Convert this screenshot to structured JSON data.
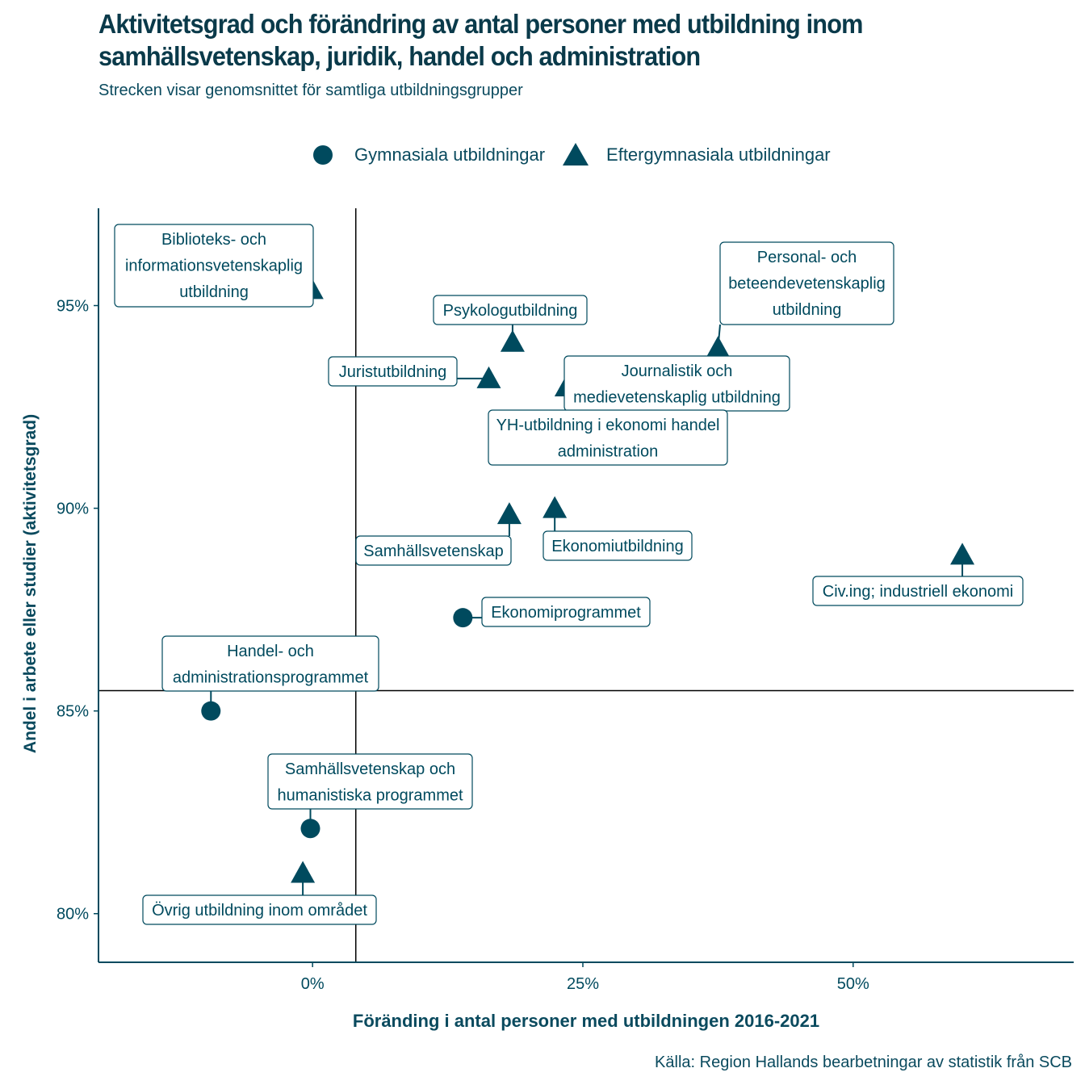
{
  "title_line1": "Aktivitetsgrad och förändring av antal personer med utbildning inom",
  "title_line2": "samhällsvetenskap, juridik, handel och administration",
  "subtitle": "Strecken visar genomsnittet för samtliga utbildningsgrupper",
  "caption": "Källa: Region Hallands bearbetningar av statistik från SCB",
  "colors": {
    "marker": "#004a5e",
    "text": "#0a4a5e",
    "refline": "#000000"
  },
  "legend": [
    {
      "label": "Gymnasiala utbildningar",
      "shape": "circle"
    },
    {
      "label": "Eftergymnasiala utbildningar",
      "shape": "triangle"
    }
  ],
  "chart_data": {
    "type": "scatter",
    "title": "Aktivitetsgrad och förändring av antal personer med utbildning inom samhällsvetenskap, juridik, handel och administration",
    "subtitle": "Strecken visar genomsnittet för samtliga utbildningsgrupper",
    "xlabel": "Föränding i antal personer med utbildningen 2016-2021",
    "ylabel": "Andel i arbete eller studier (aktivitetsgrad)",
    "xlim": [
      -19.8,
      70.4
    ],
    "ylim": [
      78.8,
      97.4
    ],
    "x_ticks": [
      0,
      25,
      50
    ],
    "x_tick_labels": [
      "0%",
      "25%",
      "50%"
    ],
    "y_ticks": [
      80,
      85,
      90,
      95
    ],
    "y_tick_labels": [
      "80%",
      "85%",
      "90%",
      "95%"
    ],
    "grid": false,
    "legend_position": "top",
    "reference_lines": {
      "x_mean": 4.0,
      "y_mean": 85.5
    },
    "series": [
      {
        "name": "Gymnasiala utbildningar",
        "shape": "circle",
        "points": [
          {
            "label": "Ekonomiprogrammet",
            "x": 13.9,
            "y": 87.3
          },
          {
            "label": "Handel- och administrationsprogrammet",
            "x": -9.4,
            "y": 85.0
          },
          {
            "label": "Samhällsvetenskap och humanistiska programmet",
            "x": -0.2,
            "y": 82.1
          }
        ]
      },
      {
        "name": "Eftergymnasiala utbildningar",
        "shape": "triangle",
        "points": [
          {
            "label": "Biblioteks- och informationsvetenskaplig utbildning",
            "x": -0.1,
            "y": 95.4
          },
          {
            "label": "Psykologutbildning",
            "x": 18.5,
            "y": 94.1
          },
          {
            "label": "Juristutbildning",
            "x": 16.3,
            "y": 93.2
          },
          {
            "label": "Personal- och beteendevetenskaplig utbildning",
            "x": 37.5,
            "y": 93.95
          },
          {
            "label": "Journalistik och medievetenskaplig utbildning",
            "x": 23.5,
            "y": 93.0
          },
          {
            "label": "YH-utbildning i ekonomi handel administration",
            "x": 23.4,
            "y": 91.3
          },
          {
            "label": "Samhällsvetenskap",
            "x": 18.2,
            "y": 89.85
          },
          {
            "label": "Ekonomiutbildning",
            "x": 22.4,
            "y": 90.0
          },
          {
            "label": "Civ.ing; industriell ekonomi",
            "x": 60.1,
            "y": 88.85
          },
          {
            "label": "Övrig utbildning inom området",
            "x": -0.9,
            "y": 81.0
          }
        ]
      }
    ]
  }
}
